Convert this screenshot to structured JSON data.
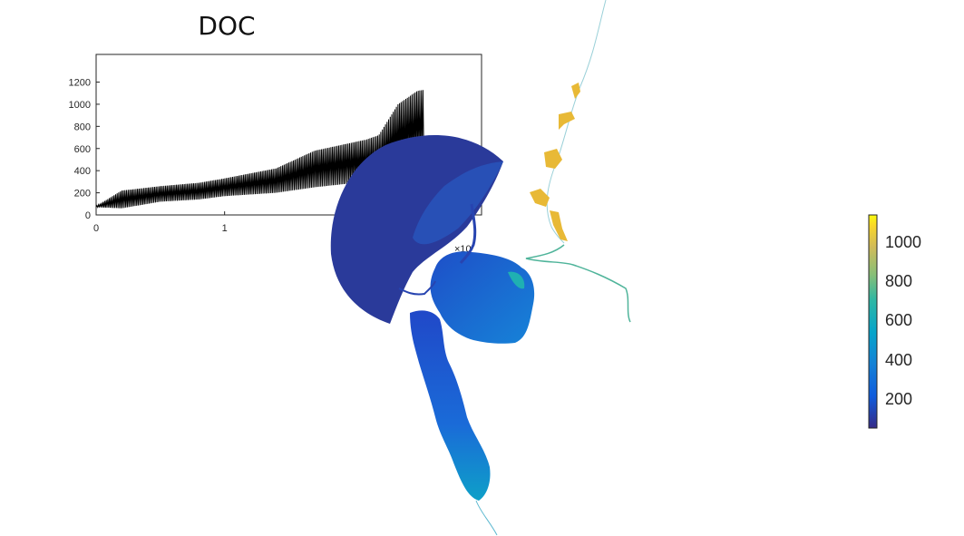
{
  "chart_data": [
    {
      "type": "line",
      "title": "DOC",
      "xlabel": "",
      "ylabel": "",
      "xlim": [
        0,
        3
      ],
      "ylim": [
        0,
        1450
      ],
      "xticks": [
        0,
        1
      ],
      "yticks": [
        0,
        200,
        400,
        600,
        800,
        1000,
        1200
      ],
      "x_exponent_label": "×10",
      "grid": false,
      "series": [
        {
          "color": "#000000",
          "envelope_x": [
            0,
            0.2,
            0.5,
            0.8,
            1.0,
            1.4,
            1.7,
            2.1,
            2.2,
            2.35,
            2.5,
            2.55
          ],
          "envelope_low": [
            70,
            60,
            120,
            140,
            170,
            200,
            250,
            300,
            330,
            420,
            500,
            560
          ],
          "envelope_high": [
            80,
            220,
            260,
            290,
            330,
            420,
            580,
            680,
            720,
            1000,
            1120,
            1130
          ]
        }
      ]
    },
    {
      "type": "heatmap",
      "colormap": "parula",
      "colorbar_ticks": [
        "200",
        "400",
        "600",
        "800",
        "1000"
      ],
      "clim": [
        30,
        1150
      ]
    }
  ]
}
